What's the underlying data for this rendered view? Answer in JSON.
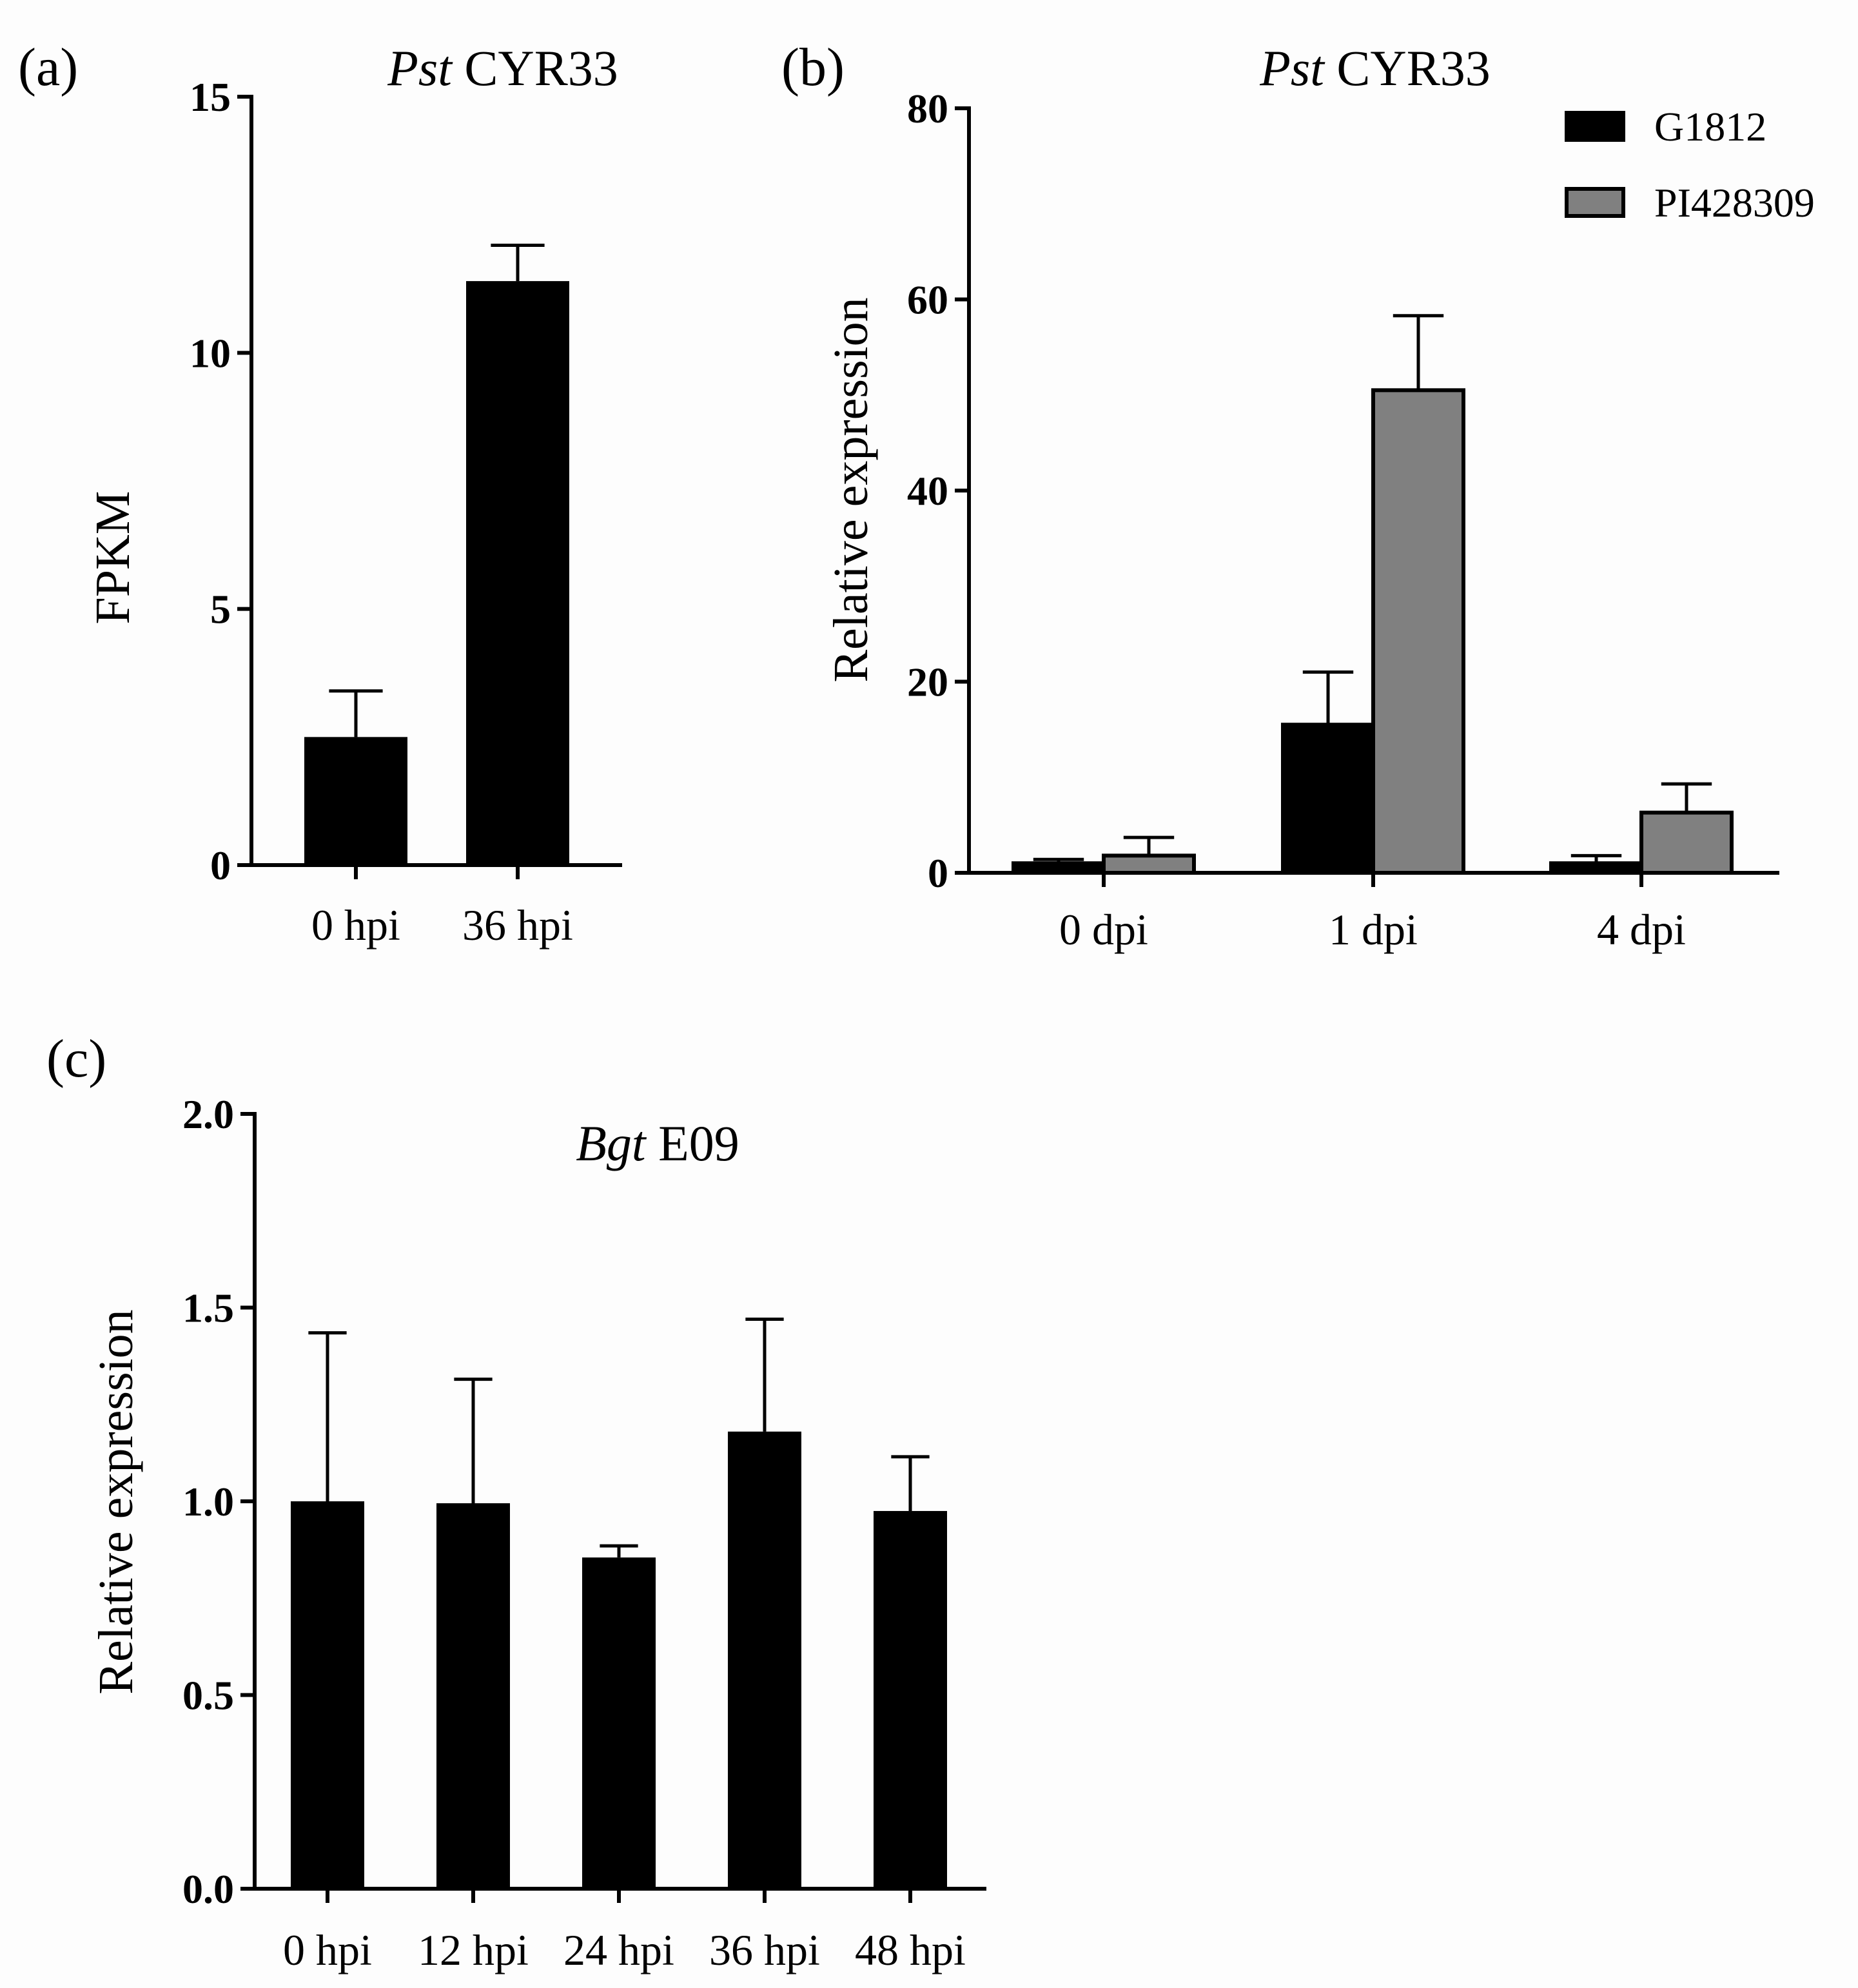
{
  "colors": {
    "series1": "#000000",
    "series2": "#808080",
    "background": "#fdfdfd"
  },
  "chart_data": [
    {
      "panel": "(a)",
      "type": "bar",
      "title_italic": "Pst",
      "title_rest": " CYR33",
      "ylabel": "FPKM",
      "xlabel": "",
      "ylim": [
        0,
        15
      ],
      "yticks": [
        "0",
        "5",
        "10",
        "15"
      ],
      "categories": [
        "0 hpi",
        "36 hpi"
      ],
      "series": [
        {
          "name": "",
          "values": [
            2.5,
            11.4
          ],
          "errors": [
            0.9,
            0.7
          ]
        }
      ],
      "legend": "none"
    },
    {
      "panel": "(b)",
      "type": "bar",
      "title_italic": "Pst",
      "title_rest": " CYR33",
      "ylabel": "Relative expression",
      "xlabel": "",
      "ylim": [
        0,
        80
      ],
      "yticks": [
        "0",
        "20",
        "40",
        "60",
        "80"
      ],
      "categories": [
        "0 dpi",
        "1 dpi",
        "4 dpi"
      ],
      "series": [
        {
          "name": "G1812",
          "values": [
            1.0,
            15.5,
            1.0
          ],
          "errors": [
            0.4,
            5.5,
            0.8
          ]
        },
        {
          "name": "PI428309",
          "values": [
            1.8,
            50.5,
            6.3
          ],
          "errors": [
            1.9,
            7.8,
            3.0
          ]
        }
      ],
      "legend": "top-right"
    },
    {
      "panel": "(c)",
      "type": "bar",
      "title_italic": "Bgt",
      "title_rest": " E09",
      "ylabel": "Relative expression",
      "xlabel": "",
      "ylim": [
        0,
        2.0
      ],
      "yticks": [
        "0.0",
        "0.5",
        "1.0",
        "1.5",
        "2.0"
      ],
      "categories": [
        "0 hpi",
        "12 hpi",
        "24 hpi",
        "36 hpi",
        "48 hpi"
      ],
      "series": [
        {
          "name": "",
          "values": [
            1.0,
            0.995,
            0.855,
            1.18,
            0.975
          ],
          "errors": [
            0.435,
            0.32,
            0.03,
            0.29,
            0.14
          ]
        }
      ],
      "legend": "none"
    }
  ]
}
